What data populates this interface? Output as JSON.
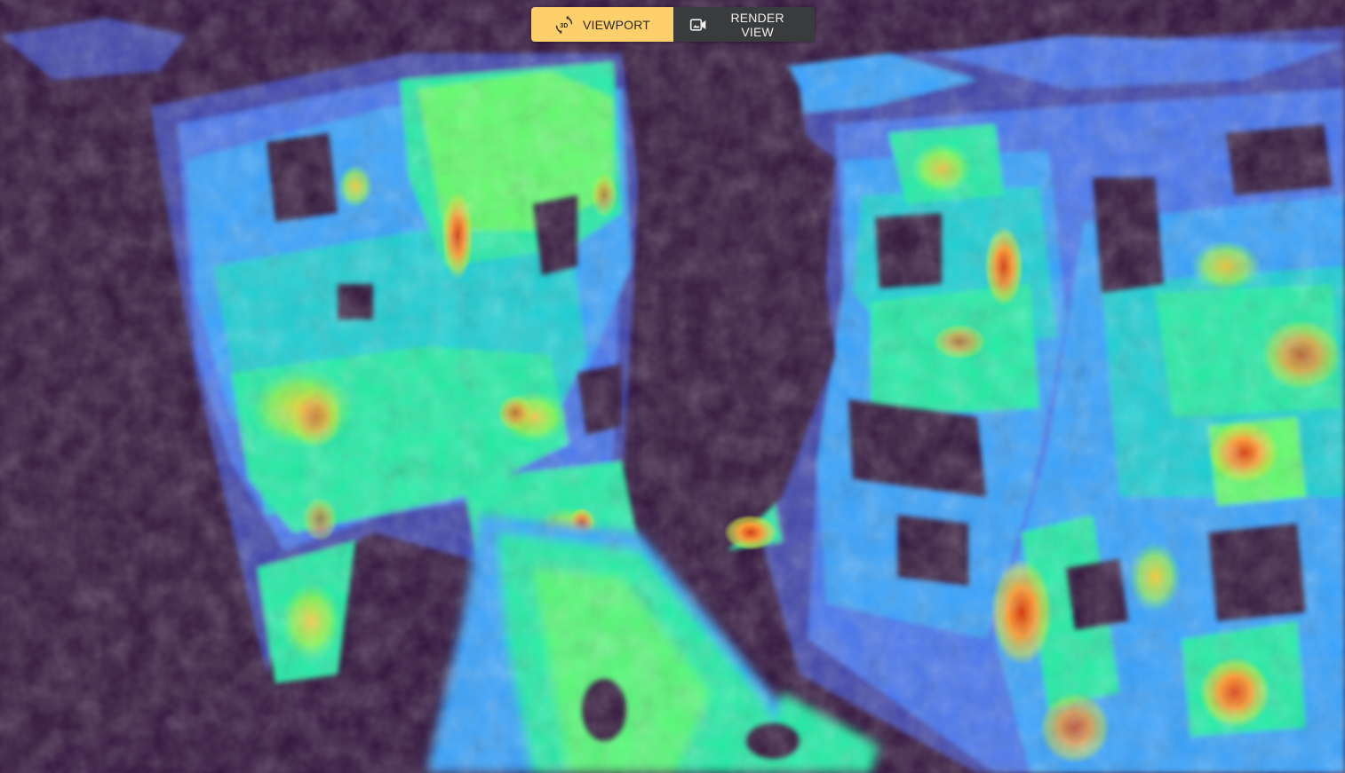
{
  "toolbar": {
    "viewport_label": "VIEWPORT",
    "viewport_icon": "3d-rotation-icon",
    "render_label": "RENDER VIEW",
    "render_icon": "video-camera-icon",
    "active_mode": "viewport"
  },
  "scene": {
    "background_color": "#30123b",
    "colormap": "turbo",
    "colormap_stops": [
      "#30123b",
      "#4145ab",
      "#4675ed",
      "#39a2fc",
      "#1bcfd4",
      "#24eca6",
      "#61fc6c",
      "#a4fc3b",
      "#d1e834",
      "#f3c63a",
      "#fe9b2d",
      "#f36315",
      "#d93806",
      "#b11901",
      "#7a0402"
    ]
  }
}
